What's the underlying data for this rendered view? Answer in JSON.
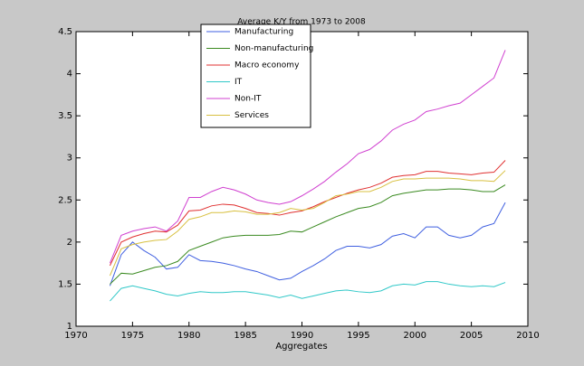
{
  "chart_data": {
    "type": "line",
    "title": "Average K/Y from 1973 to 2008",
    "x_label": "Aggregates",
    "x": [
      1973,
      1974,
      1975,
      1976,
      1977,
      1978,
      1979,
      1980,
      1981,
      1982,
      1983,
      1984,
      1985,
      1986,
      1987,
      1988,
      1989,
      1990,
      1991,
      1992,
      1993,
      1994,
      1995,
      1996,
      1997,
      1998,
      1999,
      2000,
      2001,
      2002,
      2003,
      2004,
      2005,
      2006,
      2007,
      2008
    ],
    "xlim": [
      1970,
      2010
    ],
    "xticks": [
      1970,
      1975,
      1980,
      1985,
      1990,
      1995,
      2000,
      2005,
      2010
    ],
    "ylim": [
      1,
      4.5
    ],
    "yticks": [
      1,
      1.5,
      2,
      2.5,
      3,
      3.5,
      4,
      4.5
    ],
    "legend": "north-west",
    "series": [
      {
        "name": "Manufacturing",
        "color": "#3f5fe0",
        "values": [
          1.48,
          1.85,
          2.0,
          1.9,
          1.82,
          1.68,
          1.7,
          1.85,
          1.78,
          1.77,
          1.75,
          1.72,
          1.68,
          1.65,
          1.6,
          1.55,
          1.57,
          1.65,
          1.72,
          1.8,
          1.9,
          1.95,
          1.95,
          1.93,
          1.97,
          2.07,
          2.1,
          2.05,
          2.18,
          2.18,
          2.08,
          2.05,
          2.08,
          2.18,
          2.22,
          2.47
        ]
      },
      {
        "name": "Non-manufacturing",
        "color": "#3a8a20",
        "values": [
          1.5,
          1.63,
          1.62,
          1.66,
          1.7,
          1.72,
          1.77,
          1.9,
          1.95,
          2.0,
          2.05,
          2.07,
          2.08,
          2.08,
          2.08,
          2.09,
          2.13,
          2.12,
          2.18,
          2.24,
          2.3,
          2.35,
          2.4,
          2.42,
          2.47,
          2.55,
          2.58,
          2.6,
          2.62,
          2.62,
          2.63,
          2.63,
          2.62,
          2.6,
          2.6,
          2.68
        ]
      },
      {
        "name": "Macro economy",
        "color": "#e03030",
        "values": [
          1.72,
          2.0,
          2.06,
          2.1,
          2.13,
          2.12,
          2.2,
          2.37,
          2.38,
          2.43,
          2.45,
          2.44,
          2.4,
          2.35,
          2.34,
          2.32,
          2.35,
          2.37,
          2.42,
          2.48,
          2.53,
          2.58,
          2.62,
          2.65,
          2.7,
          2.77,
          2.79,
          2.8,
          2.84,
          2.84,
          2.82,
          2.81,
          2.8,
          2.82,
          2.83,
          2.97
        ]
      },
      {
        "name": "IT",
        "color": "#30c8c8",
        "values": [
          1.3,
          1.45,
          1.48,
          1.45,
          1.42,
          1.38,
          1.36,
          1.39,
          1.41,
          1.4,
          1.4,
          1.41,
          1.41,
          1.39,
          1.37,
          1.34,
          1.37,
          1.33,
          1.36,
          1.39,
          1.42,
          1.43,
          1.41,
          1.4,
          1.42,
          1.48,
          1.5,
          1.49,
          1.53,
          1.53,
          1.5,
          1.48,
          1.47,
          1.48,
          1.47,
          1.52
        ]
      },
      {
        "name": "Non-IT",
        "color": "#d040d0",
        "values": [
          1.75,
          2.08,
          2.13,
          2.16,
          2.18,
          2.13,
          2.25,
          2.53,
          2.53,
          2.6,
          2.65,
          2.62,
          2.57,
          2.5,
          2.47,
          2.45,
          2.48,
          2.55,
          2.63,
          2.72,
          2.83,
          2.93,
          3.05,
          3.1,
          3.2,
          3.33,
          3.4,
          3.45,
          3.55,
          3.58,
          3.62,
          3.65,
          3.75,
          3.85,
          3.95,
          4.28
        ]
      },
      {
        "name": "Services",
        "color": "#d8c040",
        "values": [
          1.6,
          1.92,
          1.97,
          2.0,
          2.02,
          2.03,
          2.13,
          2.27,
          2.3,
          2.35,
          2.35,
          2.37,
          2.36,
          2.33,
          2.33,
          2.35,
          2.4,
          2.38,
          2.4,
          2.47,
          2.55,
          2.57,
          2.6,
          2.6,
          2.65,
          2.72,
          2.75,
          2.75,
          2.76,
          2.76,
          2.76,
          2.75,
          2.73,
          2.73,
          2.72,
          2.85
        ]
      }
    ]
  }
}
